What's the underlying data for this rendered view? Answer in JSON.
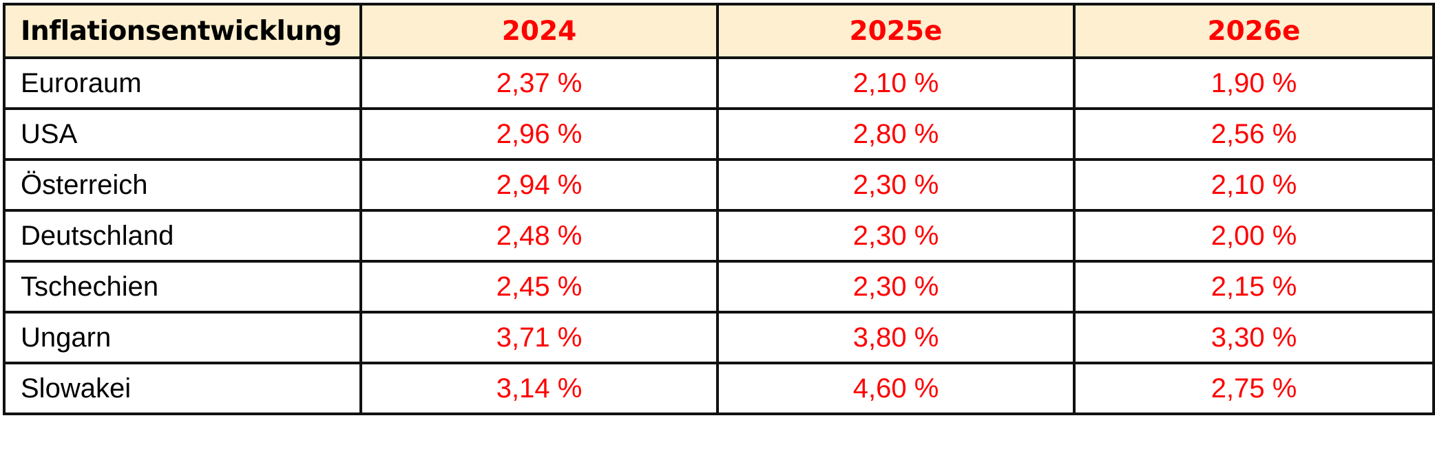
{
  "chart_data": {
    "type": "table",
    "header": {
      "label": "Inflationsentwicklung",
      "columns": [
        "2024",
        "2025e",
        "2026e"
      ]
    },
    "rows": [
      {
        "country": "Euroraum",
        "values": [
          "2,37 %",
          "2,10 %",
          "1,90 %"
        ]
      },
      {
        "country": "USA",
        "values": [
          "2,96 %",
          "2,80 %",
          "2,56 %"
        ]
      },
      {
        "country": "Österreich",
        "values": [
          "2,94 %",
          "2,30 %",
          "2,10 %"
        ]
      },
      {
        "country": "Deutschland",
        "values": [
          "2,48 %",
          "2,30 %",
          "2,00 %"
        ]
      },
      {
        "country": "Tschechien",
        "values": [
          "2,45 %",
          "2,30 %",
          "2,15 %"
        ]
      },
      {
        "country": "Ungarn",
        "values": [
          "3,71 %",
          "3,80 %",
          "3,30 %"
        ]
      },
      {
        "country": "Slowakei",
        "values": [
          "3,14 %",
          "4,60 %",
          "2,75 %"
        ]
      }
    ]
  },
  "colors": {
    "header_background": "#fdefcf",
    "value_text": "#ff0000",
    "label_text": "#000000",
    "grid_lines": "#111111"
  }
}
